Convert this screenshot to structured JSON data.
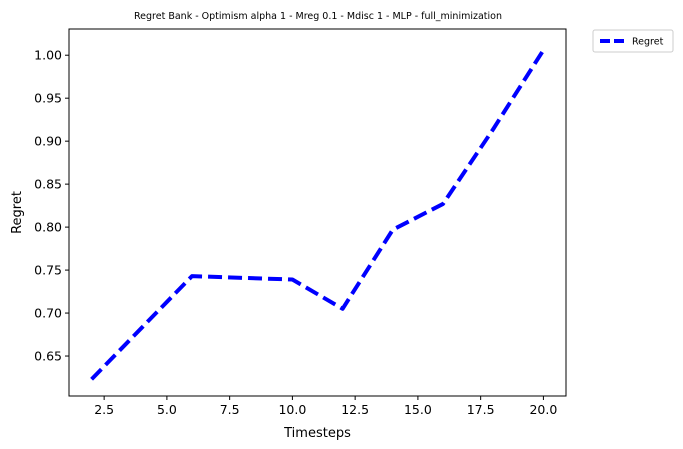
{
  "chart_data": {
    "type": "line",
    "title": "Regret Bank - Optimism alpha 1 - Mreg 0.1 - Mdisc 1 - MLP - full_minimization",
    "xlabel": "Timesteps",
    "ylabel": "Regret",
    "xlim": [
      1.1,
      20.9
    ],
    "ylim": [
      0.6035,
      1.0305
    ],
    "xticks": [
      2.5,
      5.0,
      7.5,
      10.0,
      12.5,
      15.0,
      17.5,
      20.0
    ],
    "xtick_labels": [
      "2.5",
      "5.0",
      "7.5",
      "10.0",
      "12.5",
      "15.0",
      "17.5",
      "20.0"
    ],
    "yticks": [
      0.65,
      0.7,
      0.75,
      0.8,
      0.85,
      0.9,
      0.95,
      1.0
    ],
    "ytick_labels": [
      "0.65",
      "0.70",
      "0.75",
      "0.80",
      "0.85",
      "0.90",
      "0.95",
      "1.00"
    ],
    "grid": false,
    "legend_position": "outside-top-right",
    "series": [
      {
        "name": "Regret",
        "color": "#0000ff",
        "style": "dashed",
        "x": [
          2,
          4,
          6,
          8,
          10,
          12,
          14,
          16,
          18,
          20
        ],
        "y": [
          0.623,
          0.683,
          0.743,
          0.741,
          0.739,
          0.705,
          0.797,
          0.827,
          0.914,
          1.006
        ]
      }
    ]
  }
}
